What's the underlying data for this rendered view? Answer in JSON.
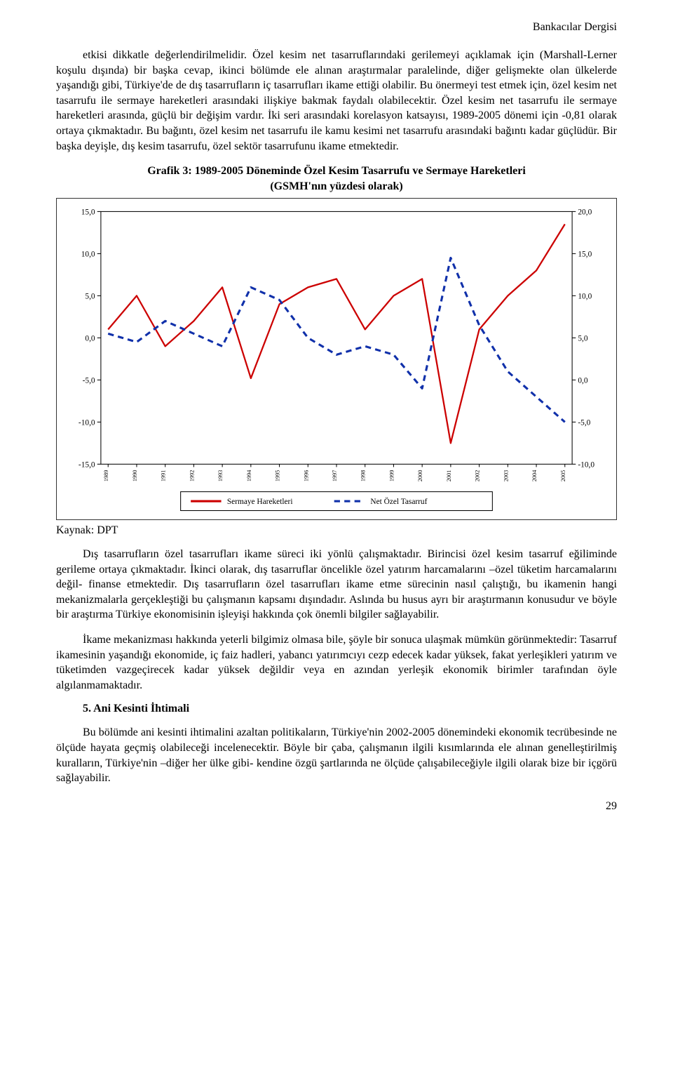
{
  "journal_header": "Bankacılar Dergisi",
  "para1": "etkisi dikkatle değerlendirilmelidir. Özel kesim net tasarruflarındaki gerilemeyi açıklamak için (Marshall-Lerner koşulu dışında) bir başka cevap, ikinci bölümde ele alınan araştırmalar paralelinde, diğer gelişmekte olan ülkelerde yaşandığı gibi, Türkiye'de de dış tasarrufların iç tasarrufları ikame ettiği olabilir. Bu önermeyi test etmek için, özel kesim net tasarrufu ile sermaye hareketleri arasındaki ilişkiye bakmak faydalı olabilecektir. Özel kesim net tasarrufu ile sermaye hareketleri arasında, güçlü bir değişim vardır. İki seri arasındaki korelasyon katsayısı, 1989-2005 dönemi için -0,81 olarak ortaya çıkmaktadır. Bu bağıntı, özel kesim net tasarrufu ile kamu kesimi net tasarrufu arasındaki bağıntı kadar güçlüdür. Bir başka deyişle, dış kesim tasarrufu, özel sektör tasarrufunu ikame etmektedir.",
  "chart_title_line1": "Grafik 3: 1989-2005 Döneminde Özel Kesim Tasarrufu ve Sermaye Hareketleri",
  "chart_title_line2": "(GSMH'nın yüzdesi olarak)",
  "chart": {
    "type": "line",
    "left_axis": {
      "min": -15,
      "max": 15,
      "step": 5
    },
    "right_axis": {
      "min": -10,
      "max": 20,
      "step": 5
    },
    "left_ticks": [
      "15,0",
      "10,0",
      "5,0",
      "0,0",
      "-5,0",
      "-10,0",
      "-15,0"
    ],
    "right_ticks": [
      "20,0",
      "15,0",
      "10,0",
      "5,0",
      "0,0",
      "-5,0",
      "-10,0"
    ],
    "x_labels": [
      "1989",
      "1990",
      "1991",
      "1992",
      "1993",
      "1994",
      "1995",
      "1996",
      "1997",
      "1998",
      "1999",
      "2000",
      "2001",
      "2002",
      "2003",
      "2004",
      "2005"
    ],
    "series": [
      {
        "name": "Sermaye Hareketleri",
        "axis": "left",
        "color": "#cc0000",
        "line_width": 2.2,
        "dash": "none",
        "values": [
          1.0,
          5.0,
          -1.0,
          2.0,
          6.0,
          -4.8,
          4.0,
          6.0,
          7.0,
          1.0,
          5.0,
          7.0,
          -12.5,
          1.0,
          5.0,
          8.0,
          13.5
        ]
      },
      {
        "name": "Net Özel Tasarruf",
        "axis": "right",
        "color": "#1030aa",
        "line_width": 3.0,
        "dash": "8 6",
        "values": [
          5.5,
          4.5,
          7.0,
          5.5,
          4.0,
          11.0,
          9.5,
          5.0,
          3.0,
          4.0,
          3.0,
          -1.0,
          14.5,
          6.5,
          1.0,
          -2.0,
          -5.0
        ]
      }
    ],
    "legend": [
      {
        "label": "Sermaye Hareketleri",
        "style": "solid",
        "color": "#cc0000"
      },
      {
        "label": "Net Özel Tasarruf",
        "style": "dash",
        "color": "#1030aa"
      }
    ],
    "background_color": "#ffffff",
    "axis_color": "#000000",
    "tick_label_fontsize": 11,
    "x_label_fontsize": 8
  },
  "source_label": "Kaynak: DPT",
  "para2": "Dış tasarrufların özel tasarrufları ikame süreci iki yönlü çalışmaktadır. Birincisi özel kesim tasarruf eğiliminde gerileme ortaya çıkmaktadır. İkinci olarak, dış tasarruflar öncelikle özel yatırım harcamalarını –özel tüketim harcamalarını değil- finanse etmektedir. Dış tasarrufların özel tasarrufları ikame etme sürecinin nasıl çalıştığı, bu ikamenin hangi mekanizmalarla gerçekleştiği bu çalışmanın kapsamı dışındadır. Aslında bu husus ayrı bir araştırmanın konusudur ve böyle bir araştırma Türkiye ekonomisinin işleyişi hakkında çok önemli bilgiler sağlayabilir.",
  "para3": "İkame mekanizması hakkında yeterli bilgimiz olmasa bile, şöyle bir sonuca ulaşmak mümkün görünmektedir: Tasarruf ikamesinin yaşandığı ekonomide, iç faiz hadleri, yabancı yatırımcıyı cezp edecek kadar yüksek, fakat yerleşikleri yatırım ve tüketimden vazgeçirecek kadar yüksek değildir veya en azından yerleşik ekonomik birimler tarafından öyle algılanmamaktadır.",
  "section5_heading": "5. Ani Kesinti İhtimali",
  "para4": "Bu bölümde ani kesinti ihtimalini azaltan politikaların, Türkiye'nin 2002-2005 dönemindeki ekonomik tecrübesinde ne ölçüde hayata geçmiş olabileceği incelenecektir. Böyle bir çaba, çalışmanın ilgili kısımlarında ele alınan genelleştirilmiş kuralların, Türkiye'nin –diğer her ülke gibi- kendine özgü şartlarında ne ölçüde çalışabileceğiyle ilgili olarak bize bir içgörü sağlayabilir.",
  "page_number": "29"
}
